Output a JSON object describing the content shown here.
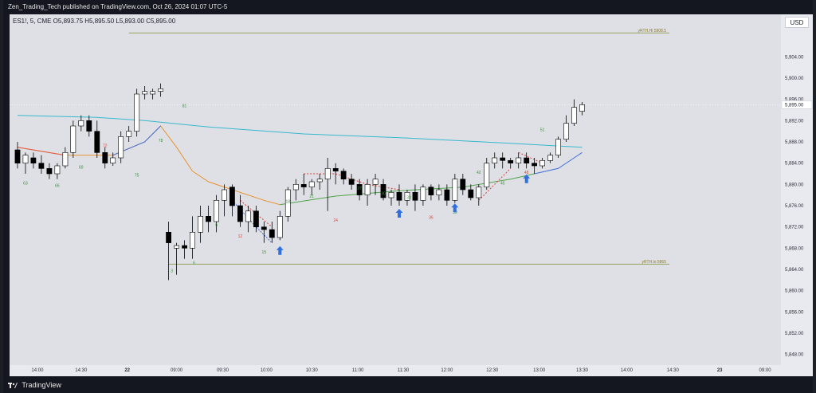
{
  "header": {
    "publish_text": "Zen_Trading_Tech published on TradingView.com, Oct 26, 2024 01:07 UTC-5",
    "ohlc_text": "ES1!, 5, CME  O5,893.75  H5,895.50  L5,893.00  C5,895.00"
  },
  "axis": {
    "currency_button": "USD"
  },
  "footer": {
    "brand": "TradingView"
  },
  "colors": {
    "background": "#dfe0e6",
    "up_candle": "#ffffff",
    "down_candle": "#000000",
    "ema_teal": "#36b9cc",
    "ema_orange": "#e8922d",
    "ema_red": "#e05a4a",
    "ema_blue": "#3e6fd8",
    "ema_green": "#4ea34a",
    "level_line": "#8a9a4a",
    "arrow": "#2f6fe0",
    "count_green": "#3a8f3a",
    "count_red": "#d9453b"
  },
  "chart_data": {
    "type": "candlestick",
    "symbol": "ES1!",
    "interval": "5",
    "exchange": "CME",
    "ylim": [
      5846,
      5912
    ],
    "y_ticks": [
      "5,848.00",
      "5,852.00",
      "5,856.00",
      "5,860.00",
      "5,864.00",
      "5,868.00",
      "5,872.00",
      "5,876.00",
      "5,880.00",
      "5,884.00",
      "5,888.00",
      "5,892.00",
      "5,896.00",
      "5,900.00",
      "5,904.00"
    ],
    "y_tick_values": [
      5848,
      5852,
      5856,
      5860,
      5864,
      5868,
      5872,
      5876,
      5880,
      5884,
      5888,
      5892,
      5896,
      5900,
      5904
    ],
    "last_price_label": "5,895.00",
    "last_price": 5895,
    "x_ticks": [
      "14:00",
      "14:30",
      "22",
      "09:00",
      "09:30",
      "10:00",
      "10:30",
      "11:00",
      "11:30",
      "12:00",
      "12:30",
      "13:00",
      "13:30",
      "14:00",
      "14:30",
      "23",
      "09:00"
    ],
    "x_tick_index": [
      2.5,
      8,
      13.8,
      20,
      25.8,
      31.3,
      37,
      42.8,
      48.5,
      54,
      59.7,
      65.6,
      71,
      76.6,
      82.4,
      88.3,
      94
    ],
    "candles": [
      {
        "i": 0,
        "o": 5886.5,
        "h": 5888,
        "l": 5883,
        "c": 5884
      },
      {
        "i": 1,
        "o": 5884,
        "h": 5886,
        "l": 5882,
        "c": 5885.5
      },
      {
        "i": 2,
        "o": 5885,
        "h": 5886,
        "l": 5883,
        "c": 5884
      },
      {
        "i": 3,
        "o": 5884,
        "h": 5885.5,
        "l": 5882,
        "c": 5883
      },
      {
        "i": 4,
        "o": 5883,
        "h": 5884,
        "l": 5881,
        "c": 5882
      },
      {
        "i": 5,
        "o": 5882,
        "h": 5884,
        "l": 5881,
        "c": 5883.5
      },
      {
        "i": 6,
        "o": 5883.5,
        "h": 5887,
        "l": 5883,
        "c": 5886
      },
      {
        "i": 7,
        "o": 5886,
        "h": 5892,
        "l": 5885,
        "c": 5891
      },
      {
        "i": 8,
        "o": 5891,
        "h": 5893,
        "l": 5890,
        "c": 5892
      },
      {
        "i": 9,
        "o": 5892,
        "h": 5893,
        "l": 5889,
        "c": 5890
      },
      {
        "i": 10,
        "o": 5890,
        "h": 5892,
        "l": 5885,
        "c": 5886
      },
      {
        "i": 11,
        "o": 5886,
        "h": 5887,
        "l": 5883,
        "c": 5884
      },
      {
        "i": 12,
        "o": 5884,
        "h": 5886,
        "l": 5883.5,
        "c": 5885
      },
      {
        "i": 13,
        "o": 5885,
        "h": 5890,
        "l": 5884,
        "c": 5889
      },
      {
        "i": 14,
        "o": 5889,
        "h": 5891,
        "l": 5888,
        "c": 5890
      },
      {
        "i": 15,
        "o": 5890,
        "h": 5898,
        "l": 5889,
        "c": 5897
      },
      {
        "i": 16,
        "o": 5897,
        "h": 5898.5,
        "l": 5896,
        "c": 5897.5
      },
      {
        "i": 17,
        "o": 5897,
        "h": 5898,
        "l": 5896,
        "c": 5897.5
      },
      {
        "i": 18,
        "o": 5897.5,
        "h": 5899,
        "l": 5896.5,
        "c": 5898
      },
      {
        "i": 19,
        "o": 5871,
        "h": 5873,
        "l": 5862,
        "c": 5869
      },
      {
        "i": 20,
        "o": 5868,
        "h": 5869,
        "l": 5863,
        "c": 5868.5
      },
      {
        "i": 21,
        "o": 5868.5,
        "h": 5869.5,
        "l": 5866,
        "c": 5868
      },
      {
        "i": 22,
        "o": 5868,
        "h": 5874,
        "l": 5866,
        "c": 5871
      },
      {
        "i": 23,
        "o": 5871,
        "h": 5876,
        "l": 5869,
        "c": 5874
      },
      {
        "i": 24,
        "o": 5874,
        "h": 5876,
        "l": 5871,
        "c": 5873
      },
      {
        "i": 25,
        "o": 5873,
        "h": 5878,
        "l": 5871,
        "c": 5877
      },
      {
        "i": 26,
        "o": 5877,
        "h": 5880,
        "l": 5874,
        "c": 5879
      },
      {
        "i": 27,
        "o": 5879.5,
        "h": 5880,
        "l": 5874,
        "c": 5876
      },
      {
        "i": 28,
        "o": 5876,
        "h": 5878,
        "l": 5872,
        "c": 5873
      },
      {
        "i": 29,
        "o": 5873,
        "h": 5876,
        "l": 5871,
        "c": 5875
      },
      {
        "i": 30,
        "o": 5875,
        "h": 5876,
        "l": 5871,
        "c": 5872
      },
      {
        "i": 31,
        "o": 5872,
        "h": 5873,
        "l": 5869,
        "c": 5871.5
      },
      {
        "i": 32,
        "o": 5871.5,
        "h": 5873,
        "l": 5869,
        "c": 5870
      },
      {
        "i": 33,
        "o": 5870,
        "h": 5875,
        "l": 5869.5,
        "c": 5874
      },
      {
        "i": 34,
        "o": 5874,
        "h": 5879.5,
        "l": 5873,
        "c": 5879
      },
      {
        "i": 35,
        "o": 5879,
        "h": 5881,
        "l": 5877,
        "c": 5880
      },
      {
        "i": 36,
        "o": 5880,
        "h": 5882,
        "l": 5878,
        "c": 5879.5
      },
      {
        "i": 37,
        "o": 5879.5,
        "h": 5881,
        "l": 5878,
        "c": 5880.5
      },
      {
        "i": 38,
        "o": 5880.5,
        "h": 5882,
        "l": 5879,
        "c": 5881
      },
      {
        "i": 39,
        "o": 5881,
        "h": 5885,
        "l": 5875,
        "c": 5883
      },
      {
        "i": 40,
        "o": 5883,
        "h": 5884,
        "l": 5880,
        "c": 5882.5
      },
      {
        "i": 41,
        "o": 5882.5,
        "h": 5883,
        "l": 5880,
        "c": 5881
      },
      {
        "i": 42,
        "o": 5881,
        "h": 5882,
        "l": 5879,
        "c": 5880
      },
      {
        "i": 43,
        "o": 5880,
        "h": 5881,
        "l": 5877,
        "c": 5878
      },
      {
        "i": 44,
        "o": 5878,
        "h": 5881,
        "l": 5876,
        "c": 5880
      },
      {
        "i": 45,
        "o": 5880,
        "h": 5882,
        "l": 5878,
        "c": 5881
      },
      {
        "i": 46,
        "o": 5880,
        "h": 5881,
        "l": 5877,
        "c": 5877.5
      },
      {
        "i": 47,
        "o": 5877.5,
        "h": 5879,
        "l": 5876,
        "c": 5878.5
      },
      {
        "i": 48,
        "o": 5878.5,
        "h": 5880,
        "l": 5876,
        "c": 5877
      },
      {
        "i": 49,
        "o": 5877,
        "h": 5879,
        "l": 5876,
        "c": 5878.5
      },
      {
        "i": 50,
        "o": 5878.5,
        "h": 5880,
        "l": 5875,
        "c": 5877
      },
      {
        "i": 51,
        "o": 5877,
        "h": 5880,
        "l": 5876,
        "c": 5879.5
      },
      {
        "i": 52,
        "o": 5879.5,
        "h": 5880,
        "l": 5877,
        "c": 5878
      },
      {
        "i": 53,
        "o": 5878,
        "h": 5880,
        "l": 5877,
        "c": 5879
      },
      {
        "i": 54,
        "o": 5879,
        "h": 5880,
        "l": 5876,
        "c": 5877
      },
      {
        "i": 55,
        "o": 5877,
        "h": 5882,
        "l": 5876.5,
        "c": 5881
      },
      {
        "i": 56,
        "o": 5881,
        "h": 5882,
        "l": 5878,
        "c": 5879
      },
      {
        "i": 57,
        "o": 5879,
        "h": 5880,
        "l": 5877,
        "c": 5877.5
      },
      {
        "i": 58,
        "o": 5877.5,
        "h": 5880,
        "l": 5876,
        "c": 5879.5
      },
      {
        "i": 59,
        "o": 5879.5,
        "h": 5885,
        "l": 5879,
        "c": 5884
      },
      {
        "i": 60,
        "o": 5884,
        "h": 5886,
        "l": 5883,
        "c": 5885
      },
      {
        "i": 61,
        "o": 5885,
        "h": 5886,
        "l": 5883,
        "c": 5884.5
      },
      {
        "i": 62,
        "o": 5884.5,
        "h": 5885,
        "l": 5883,
        "c": 5884
      },
      {
        "i": 63,
        "o": 5884,
        "h": 5886,
        "l": 5883,
        "c": 5885
      },
      {
        "i": 64,
        "o": 5885,
        "h": 5886,
        "l": 5883,
        "c": 5884
      },
      {
        "i": 65,
        "o": 5884,
        "h": 5885,
        "l": 5882,
        "c": 5883.5
      },
      {
        "i": 66,
        "o": 5883.5,
        "h": 5885,
        "l": 5883,
        "c": 5884.5
      },
      {
        "i": 67,
        "o": 5884.5,
        "h": 5886,
        "l": 5884,
        "c": 5885.5
      },
      {
        "i": 68,
        "o": 5885.5,
        "h": 5889,
        "l": 5885,
        "c": 5888.5
      },
      {
        "i": 69,
        "o": 5888.5,
        "h": 5893,
        "l": 5888,
        "c": 5891.5
      },
      {
        "i": 70,
        "o": 5891.5,
        "h": 5896,
        "l": 5891,
        "c": 5894.5
      },
      {
        "i": 71,
        "o": 5893.75,
        "h": 5895.5,
        "l": 5893,
        "c": 5895
      }
    ],
    "ema_teal": [
      [
        0,
        5893
      ],
      [
        10,
        5892.6
      ],
      [
        16,
        5892
      ],
      [
        24,
        5890.8
      ],
      [
        36,
        5889.5
      ],
      [
        48,
        5888.8
      ],
      [
        60,
        5887.9
      ],
      [
        71,
        5887
      ]
    ],
    "ema_orange": [
      [
        0,
        5887
      ],
      [
        6,
        5885.5
      ],
      [
        12,
        5885.5
      ],
      [
        16,
        5888
      ],
      [
        18,
        5891
      ],
      [
        20,
        5887
      ],
      [
        22,
        5882.5
      ],
      [
        24,
        5880.5
      ],
      [
        27,
        5879
      ],
      [
        31,
        5877
      ],
      [
        33,
        5876.2
      ]
    ],
    "ema_red": [
      [
        0,
        5887
      ],
      [
        6,
        5885.5
      ]
    ],
    "ema_blue": [
      [
        12,
        5885.5
      ],
      [
        16,
        5888
      ],
      [
        18,
        5891
      ]
    ],
    "ema_blue2": [
      [
        65,
        5882
      ],
      [
        68,
        5883
      ],
      [
        70,
        5885
      ],
      [
        71,
        5886
      ]
    ],
    "ema_green": [
      [
        33,
        5876.2
      ],
      [
        40,
        5877.8
      ],
      [
        48,
        5878.8
      ],
      [
        56,
        5879.5
      ],
      [
        62,
        5881
      ],
      [
        65,
        5882
      ]
    ],
    "levels": [
      {
        "label": "yRTH.Hi 5908.5",
        "value": 5908.5,
        "from_index": 14
      },
      {
        "label": "yRTH.lo 5865",
        "value": 5865,
        "from_index": 19
      }
    ],
    "bar_counts": [
      {
        "label": "63",
        "i": 1,
        "y": 5880,
        "color": "green"
      },
      {
        "label": "66",
        "i": 5,
        "y": 5879.5,
        "color": "green"
      },
      {
        "label": "69",
        "i": 8,
        "y": 5883,
        "color": "green"
      },
      {
        "label": "72",
        "i": 11,
        "y": 5887,
        "color": "red"
      },
      {
        "label": "75",
        "i": 15,
        "y": 5881.5,
        "color": "green"
      },
      {
        "label": "78",
        "i": 18,
        "y": 5888,
        "color": "green"
      },
      {
        "label": "81",
        "i": 21,
        "y": 5894.5,
        "color": "green"
      },
      {
        "label": "3",
        "i": 19.4,
        "y": 5863.5,
        "color": "green"
      },
      {
        "label": "6",
        "i": 22.2,
        "y": 5865,
        "color": "green"
      },
      {
        "label": "9",
        "i": 25,
        "y": 5872,
        "color": "green"
      },
      {
        "label": "12",
        "i": 28,
        "y": 5870,
        "color": "red"
      },
      {
        "label": "15",
        "i": 31,
        "y": 5867,
        "color": "green"
      },
      {
        "label": "18",
        "i": 34,
        "y": 5876.5,
        "color": "green"
      },
      {
        "label": "21",
        "i": 37,
        "y": 5877.5,
        "color": "green"
      },
      {
        "label": "24",
        "i": 40,
        "y": 5873,
        "color": "red"
      },
      {
        "label": "27",
        "i": 43,
        "y": 5879,
        "color": "green"
      },
      {
        "label": "30",
        "i": 46,
        "y": 5878,
        "color": "green"
      },
      {
        "label": "33",
        "i": 49.2,
        "y": 5877.3,
        "color": "green"
      },
      {
        "label": "36",
        "i": 52,
        "y": 5873.5,
        "color": "red"
      },
      {
        "label": "39",
        "i": 55,
        "y": 5874.5,
        "color": "green"
      },
      {
        "label": "42",
        "i": 58,
        "y": 5882,
        "color": "green"
      },
      {
        "label": "45",
        "i": 61,
        "y": 5880,
        "color": "green"
      },
      {
        "label": "48",
        "i": 64,
        "y": 5882,
        "color": "red"
      },
      {
        "label": "51",
        "i": 66,
        "y": 5890,
        "color": "green"
      }
    ],
    "blue_arrows": [
      {
        "i": 33,
        "y": 5867.5
      },
      {
        "i": 48,
        "y": 5874.5
      },
      {
        "i": 55,
        "y": 5875.5
      },
      {
        "i": 64,
        "y": 5881
      }
    ],
    "red_dashed": [
      [
        [
          28,
          5877
        ],
        [
          32,
          5872
        ]
      ],
      [
        [
          36,
          5882
        ],
        [
          40,
          5882
        ],
        [
          44,
          5880
        ],
        [
          48,
          5879
        ]
      ],
      [
        [
          58,
          5877
        ],
        [
          62,
          5883
        ]
      ],
      [
        [
          63,
          5886
        ],
        [
          66,
          5884
        ]
      ]
    ],
    "blue_diagonal": [
      [
        [
          27,
          5877
        ],
        [
          30,
          5872
        ],
        [
          32,
          5869
        ]
      ]
    ],
    "x_range": [
      -1,
      96
    ]
  }
}
